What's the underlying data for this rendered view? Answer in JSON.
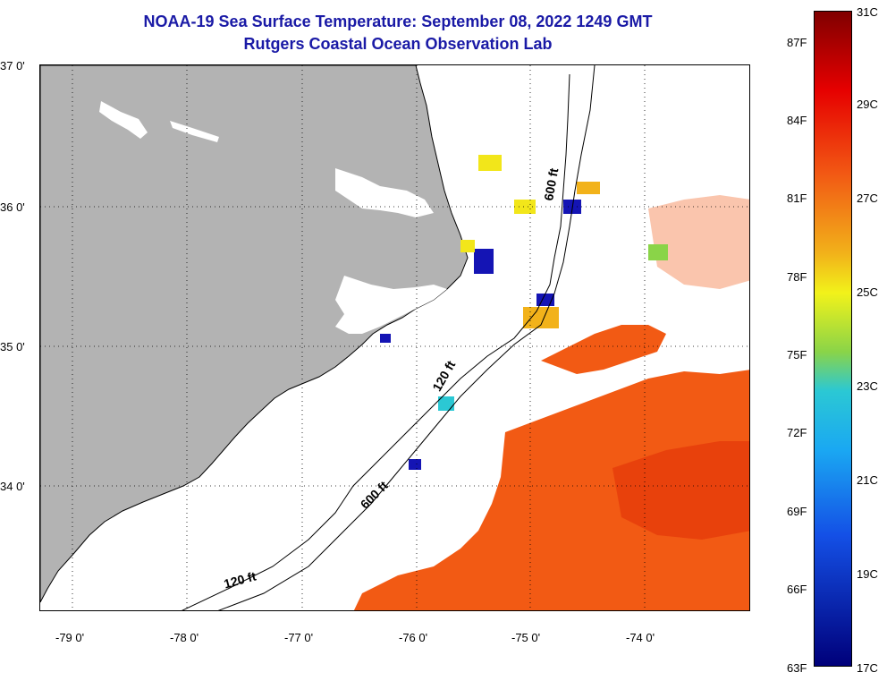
{
  "title": "NOAA-19 Sea Surface Temperature:  September 08, 2022 1249 GMT",
  "subtitle": "Rutgers Coastal Ocean Observation Lab",
  "lat_labels": [
    "37 0'",
    "36 0'",
    "35 0'",
    "34 0'"
  ],
  "lon_labels": [
    "-79 0'",
    "-78 0'",
    "-77 0'",
    "-76 0'",
    "-75 0'",
    "-74 0'"
  ],
  "contours": {
    "shelf": "120 ft",
    "slope": "600 ft"
  },
  "colorbar": {
    "celsius": [
      "31C",
      "29C",
      "27C",
      "25C",
      "23C",
      "21C",
      "19C",
      "17C"
    ],
    "fahrenheit": [
      "87F",
      "84F",
      "81F",
      "78F",
      "75F",
      "72F",
      "69F",
      "66F",
      "63F"
    ]
  },
  "colors": {
    "land": "#b3b3b3",
    "title": "#1a1aa6",
    "warm": "#f25a14",
    "cool": "#1414b4"
  }
}
